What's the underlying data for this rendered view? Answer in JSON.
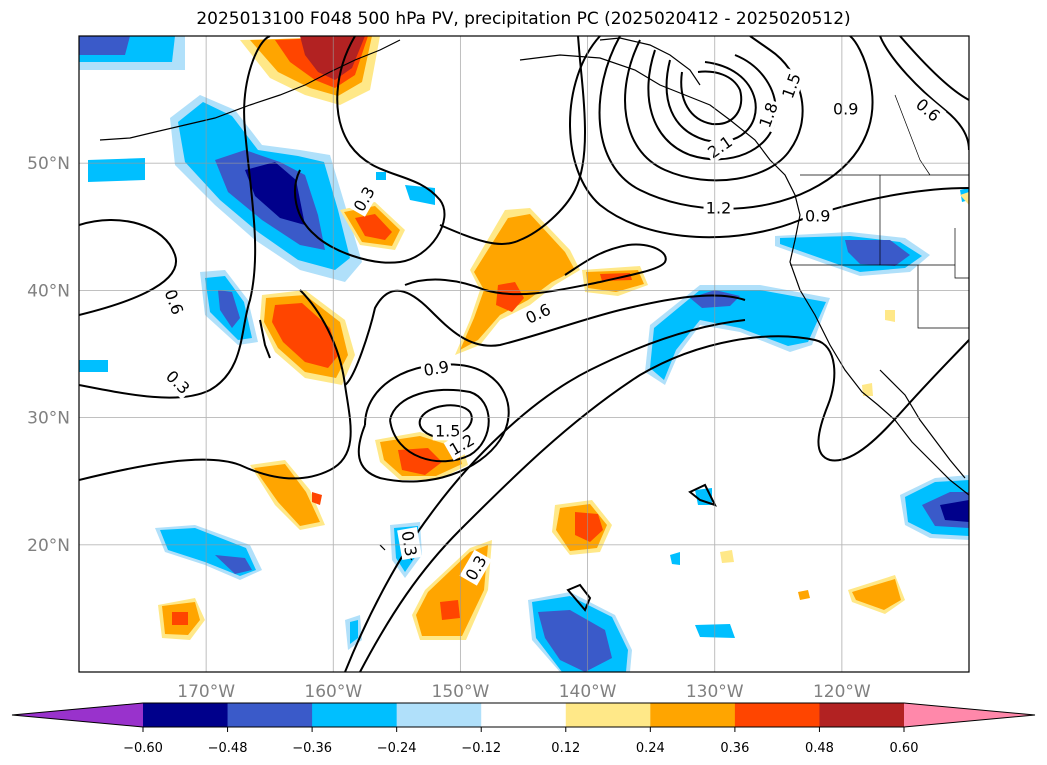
{
  "title": "2025013100 F048 500 hPa PV, precipitation PC (2025020412 - 2025020512)",
  "map": {
    "lon_range": [
      -180,
      -110
    ],
    "lat_range": [
      10,
      60
    ],
    "lat_ticks": [
      {
        "value": 50,
        "label": "50°N"
      },
      {
        "value": 40,
        "label": "40°N"
      },
      {
        "value": 30,
        "label": "30°N"
      },
      {
        "value": 20,
        "label": "20°N"
      }
    ],
    "lon_ticks": [
      {
        "value": -170,
        "label": "170°W"
      },
      {
        "value": -160,
        "label": "160°W"
      },
      {
        "value": -150,
        "label": "150°W"
      },
      {
        "value": -140,
        "label": "140°W"
      },
      {
        "value": -130,
        "label": "130°W"
      },
      {
        "value": -120,
        "label": "120°W"
      }
    ],
    "grid": true
  },
  "contour_labels": [
    {
      "text": "0.3",
      "lon": -157.6,
      "lat": 47.2,
      "rot": -60
    },
    {
      "text": "0.6",
      "lon": -172.5,
      "lat": 39.1,
      "rot": 70
    },
    {
      "text": "0.3",
      "lon": -172.2,
      "lat": 32.8,
      "rot": 45
    },
    {
      "text": "0.9",
      "lon": -151.9,
      "lat": 33.9,
      "rot": -10
    },
    {
      "text": "1.5",
      "lon": -151.0,
      "lat": 29.0,
      "rot": 0
    },
    {
      "text": "1.2",
      "lon": -149.9,
      "lat": 27.9,
      "rot": -30
    },
    {
      "text": "0.6",
      "lon": -143.9,
      "lat": 38.2,
      "rot": -25
    },
    {
      "text": "0.3",
      "lon": -154.0,
      "lat": 20.1,
      "rot": 80
    },
    {
      "text": "0.3",
      "lon": -148.8,
      "lat": 18.2,
      "rot": -60
    },
    {
      "text": "1.2",
      "lon": -129.7,
      "lat": 46.5,
      "rot": 0
    },
    {
      "text": "0.9",
      "lon": -121.9,
      "lat": 45.9,
      "rot": 0
    },
    {
      "text": "2.1",
      "lon": -129.6,
      "lat": 51.3,
      "rot": -35
    },
    {
      "text": "1.8",
      "lon": -125.8,
      "lat": 53.8,
      "rot": -70
    },
    {
      "text": "1.5",
      "lon": -124.0,
      "lat": 56.1,
      "rot": -70
    },
    {
      "text": "0.9",
      "lon": -119.7,
      "lat": 54.3,
      "rot": 0
    },
    {
      "text": "0.6",
      "lon": -113.2,
      "lat": 54.2,
      "rot": 40
    }
  ],
  "colorbar": {
    "colors": [
      "#9932cc",
      "#00008b",
      "#3a5ac9",
      "#00bfff",
      "#b0e0fa",
      "#ffffff",
      "#ffe888",
      "#ffa500",
      "#ff4500",
      "#b22222",
      "#ff88aa"
    ],
    "tick_labels": [
      "−0.60",
      "−0.48",
      "−0.36",
      "−0.24",
      "−0.12",
      "0.12",
      "0.24",
      "0.36",
      "0.48",
      "0.60"
    ]
  },
  "precip_colors": {
    "neg_weak": "#b0e0fa",
    "neg_mid": "#00bfff",
    "neg_strong": "#3a5ac9",
    "neg_max": "#00008b",
    "pos_weak": "#ffe888",
    "pos_mid": "#ffa500",
    "pos_strong": "#ff4500",
    "pos_max": "#b22222"
  }
}
